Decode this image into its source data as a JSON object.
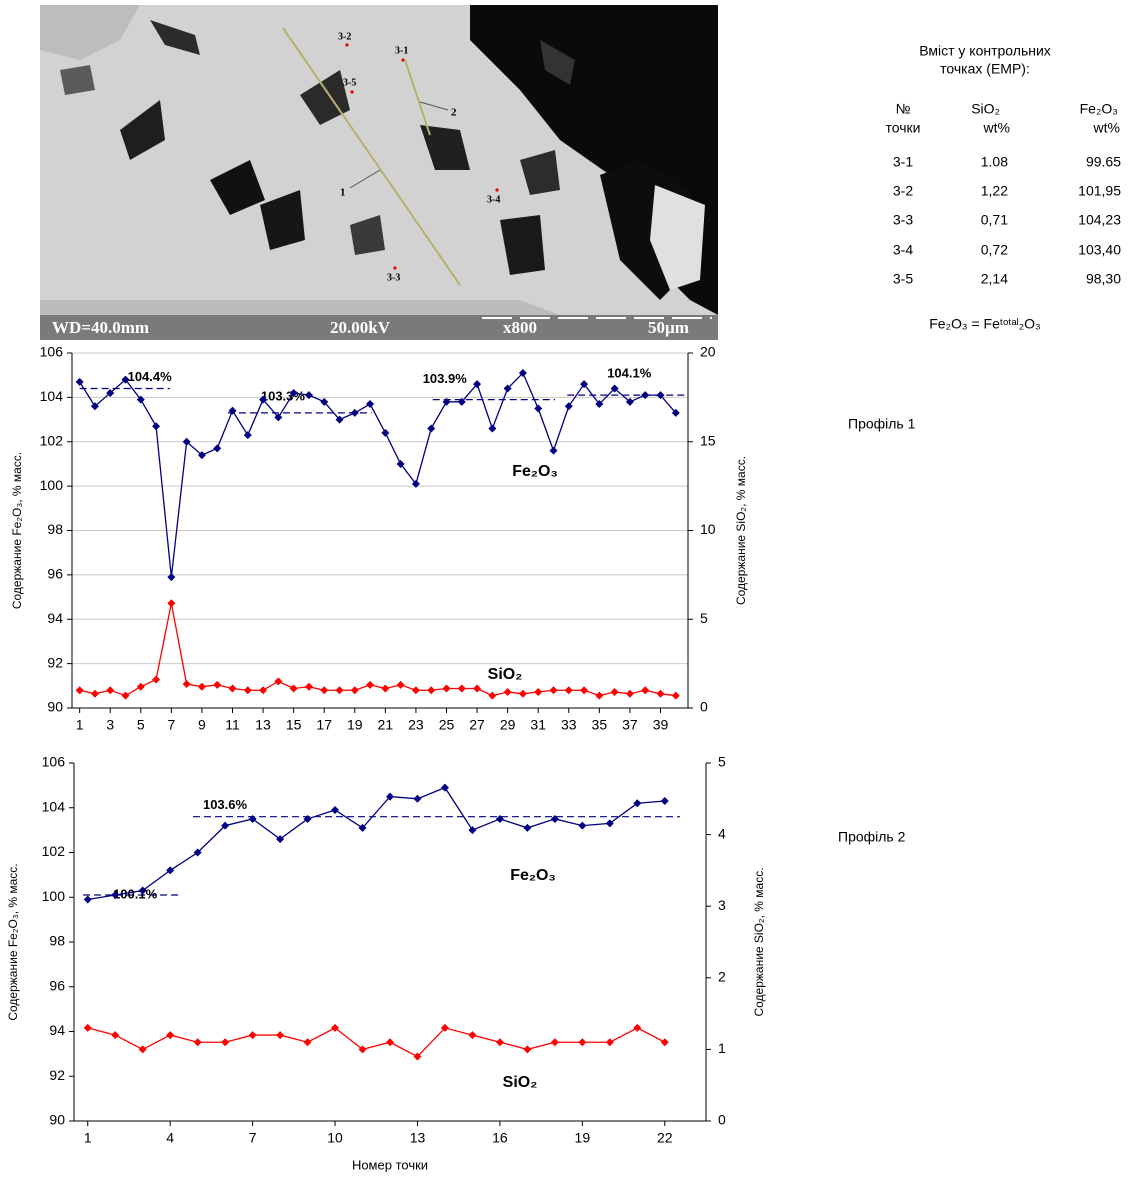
{
  "image": {
    "scale_bar": [
      "WD=40.0mm",
      "20.00kV",
      "x800",
      "50µm"
    ],
    "points": [
      "3-2",
      "3-1",
      "3-5",
      "3-4",
      "3-3"
    ],
    "profiles": [
      "1",
      "2"
    ]
  },
  "table": {
    "caption": [
      "Вміст у контрольних",
      "точках (EMP):"
    ],
    "header": [
      [
        "№",
        "точки"
      ],
      [
        "SiO₂",
        "wt%"
      ],
      [
        "Fe₂O₃",
        "wt%"
      ]
    ],
    "rows": [
      [
        "3-1",
        "1.08",
        "99.65"
      ],
      [
        "3-2",
        "1,22",
        "101,95"
      ],
      [
        "3-3",
        "0,71",
        "104,23"
      ],
      [
        "3-4",
        "0,72",
        "103,40"
      ],
      [
        "3-5",
        "2,14",
        "98,30"
      ]
    ],
    "footnote": "Fe₂O₃ = Feᵗᵒᵗᵃˡ₂O₃"
  },
  "profile_labels": [
    "Профіль 1",
    "Профіль 2"
  ],
  "chart_data": [
    {
      "type": "line",
      "ylabel": "Содержание Fe₂O₃, % масс.",
      "y2label": "Содержание SiO₂, % масс.",
      "x": [
        1,
        2,
        3,
        4,
        5,
        6,
        7,
        8,
        9,
        10,
        11,
        12,
        13,
        14,
        15,
        16,
        17,
        18,
        19,
        20,
        21,
        22,
        23,
        24,
        25,
        26,
        27,
        28,
        29,
        30,
        31,
        32,
        33,
        34,
        35,
        36,
        37,
        38,
        39,
        40
      ],
      "xlim": [
        0.5,
        40.8
      ],
      "xticks": [
        1,
        3,
        5,
        7,
        9,
        11,
        13,
        15,
        17,
        19,
        21,
        23,
        25,
        27,
        29,
        31,
        33,
        35,
        37,
        39
      ],
      "ylim": [
        90,
        106
      ],
      "yticks": [
        90,
        92,
        94,
        96,
        98,
        100,
        102,
        104,
        106
      ],
      "y2lim": [
        0,
        20
      ],
      "y2ticks": [
        0,
        5,
        10,
        15,
        20
      ],
      "grid": true,
      "annotation_color": "#000000",
      "series": [
        {
          "name": "Fe₂O₃",
          "color": "#000080",
          "values": [
            104.7,
            103.6,
            104.2,
            104.8,
            103.9,
            102.7,
            95.9,
            102.0,
            101.4,
            101.7,
            103.4,
            102.3,
            103.9,
            103.1,
            104.2,
            104.1,
            103.8,
            103.0,
            103.3,
            103.7,
            102.4,
            101.0,
            100.1,
            102.6,
            103.8,
            103.8,
            104.6,
            102.6,
            104.4,
            105.1,
            103.5,
            101.6,
            103.6,
            104.6,
            103.7,
            104.4,
            103.8,
            104.1,
            104.1,
            103.3
          ]
        },
        {
          "name": "SiO₂",
          "color": "#ff0000",
          "axis": "y2",
          "values": [
            1.0,
            0.8,
            1.0,
            0.7,
            1.2,
            1.6,
            5.9,
            1.35,
            1.2,
            1.3,
            1.1,
            1.0,
            1.0,
            1.5,
            1.1,
            1.2,
            1.0,
            1.0,
            1.0,
            1.3,
            1.1,
            1.3,
            1.0,
            1.0,
            1.1,
            1.1,
            1.1,
            0.7,
            0.9,
            0.8,
            0.9,
            1.0,
            1.0,
            1.0,
            0.7,
            0.9,
            0.8,
            1.0,
            0.8,
            0.7
          ]
        }
      ],
      "annotations": [
        {
          "value": 104.4,
          "label": "104.4%",
          "x": [
            1,
            6.9
          ]
        },
        {
          "value": 103.3,
          "label": "103.3%",
          "x": [
            10.7,
            20.1
          ]
        },
        {
          "value": 103.9,
          "label": "103.9%",
          "x": [
            24.1,
            32.1
          ]
        },
        {
          "value": 104.1,
          "label": "104.1%",
          "x": [
            32.9,
            40.6
          ]
        }
      ]
    },
    {
      "type": "line",
      "xlabel": "Номер точки",
      "ylabel": "Содержание Fe₂O₃, % масс.",
      "y2label": "Содержание SiO₂, % масс.",
      "x": [
        1,
        2,
        3,
        4,
        5,
        6,
        7,
        8,
        9,
        10,
        11,
        12,
        13,
        14,
        15,
        16,
        17,
        18,
        19,
        20,
        21,
        22
      ],
      "xlim": [
        0.5,
        23.5
      ],
      "xticks": [
        1,
        4,
        7,
        10,
        13,
        16,
        19,
        22
      ],
      "ylim": [
        90,
        106
      ],
      "yticks": [
        90,
        92,
        94,
        96,
        98,
        100,
        102,
        104,
        106
      ],
      "y2lim": [
        0,
        5
      ],
      "y2ticks": [
        0,
        1,
        2,
        3,
        4,
        5
      ],
      "grid": false,
      "annotation_color": "#000080",
      "series": [
        {
          "name": "Fe₂O₃",
          "color": "#000080",
          "values": [
            99.9,
            100.1,
            100.3,
            101.2,
            102.0,
            103.2,
            103.5,
            102.6,
            103.5,
            103.9,
            103.1,
            104.5,
            104.4,
            104.9,
            103.0,
            103.5,
            103.1,
            103.5,
            103.2,
            103.3,
            104.2,
            104.3
          ]
        },
        {
          "name": "SiO₂",
          "color": "#ff0000",
          "axis": "y2",
          "values": [
            1.3,
            1.2,
            1.0,
            1.2,
            1.1,
            1.1,
            1.2,
            1.2,
            1.1,
            1.3,
            1.0,
            1.1,
            0.9,
            1.3,
            1.2,
            1.1,
            1.0,
            1.1,
            1.1,
            1.1,
            1.3,
            1.1
          ]
        }
      ],
      "annotations": [
        {
          "value": 103.6,
          "label": "103.6%",
          "x": [
            4.83,
            22.55
          ]
        },
        {
          "value": 100.1,
          "label": "100.1%",
          "x": [
            0.83,
            4.36
          ]
        }
      ]
    }
  ]
}
